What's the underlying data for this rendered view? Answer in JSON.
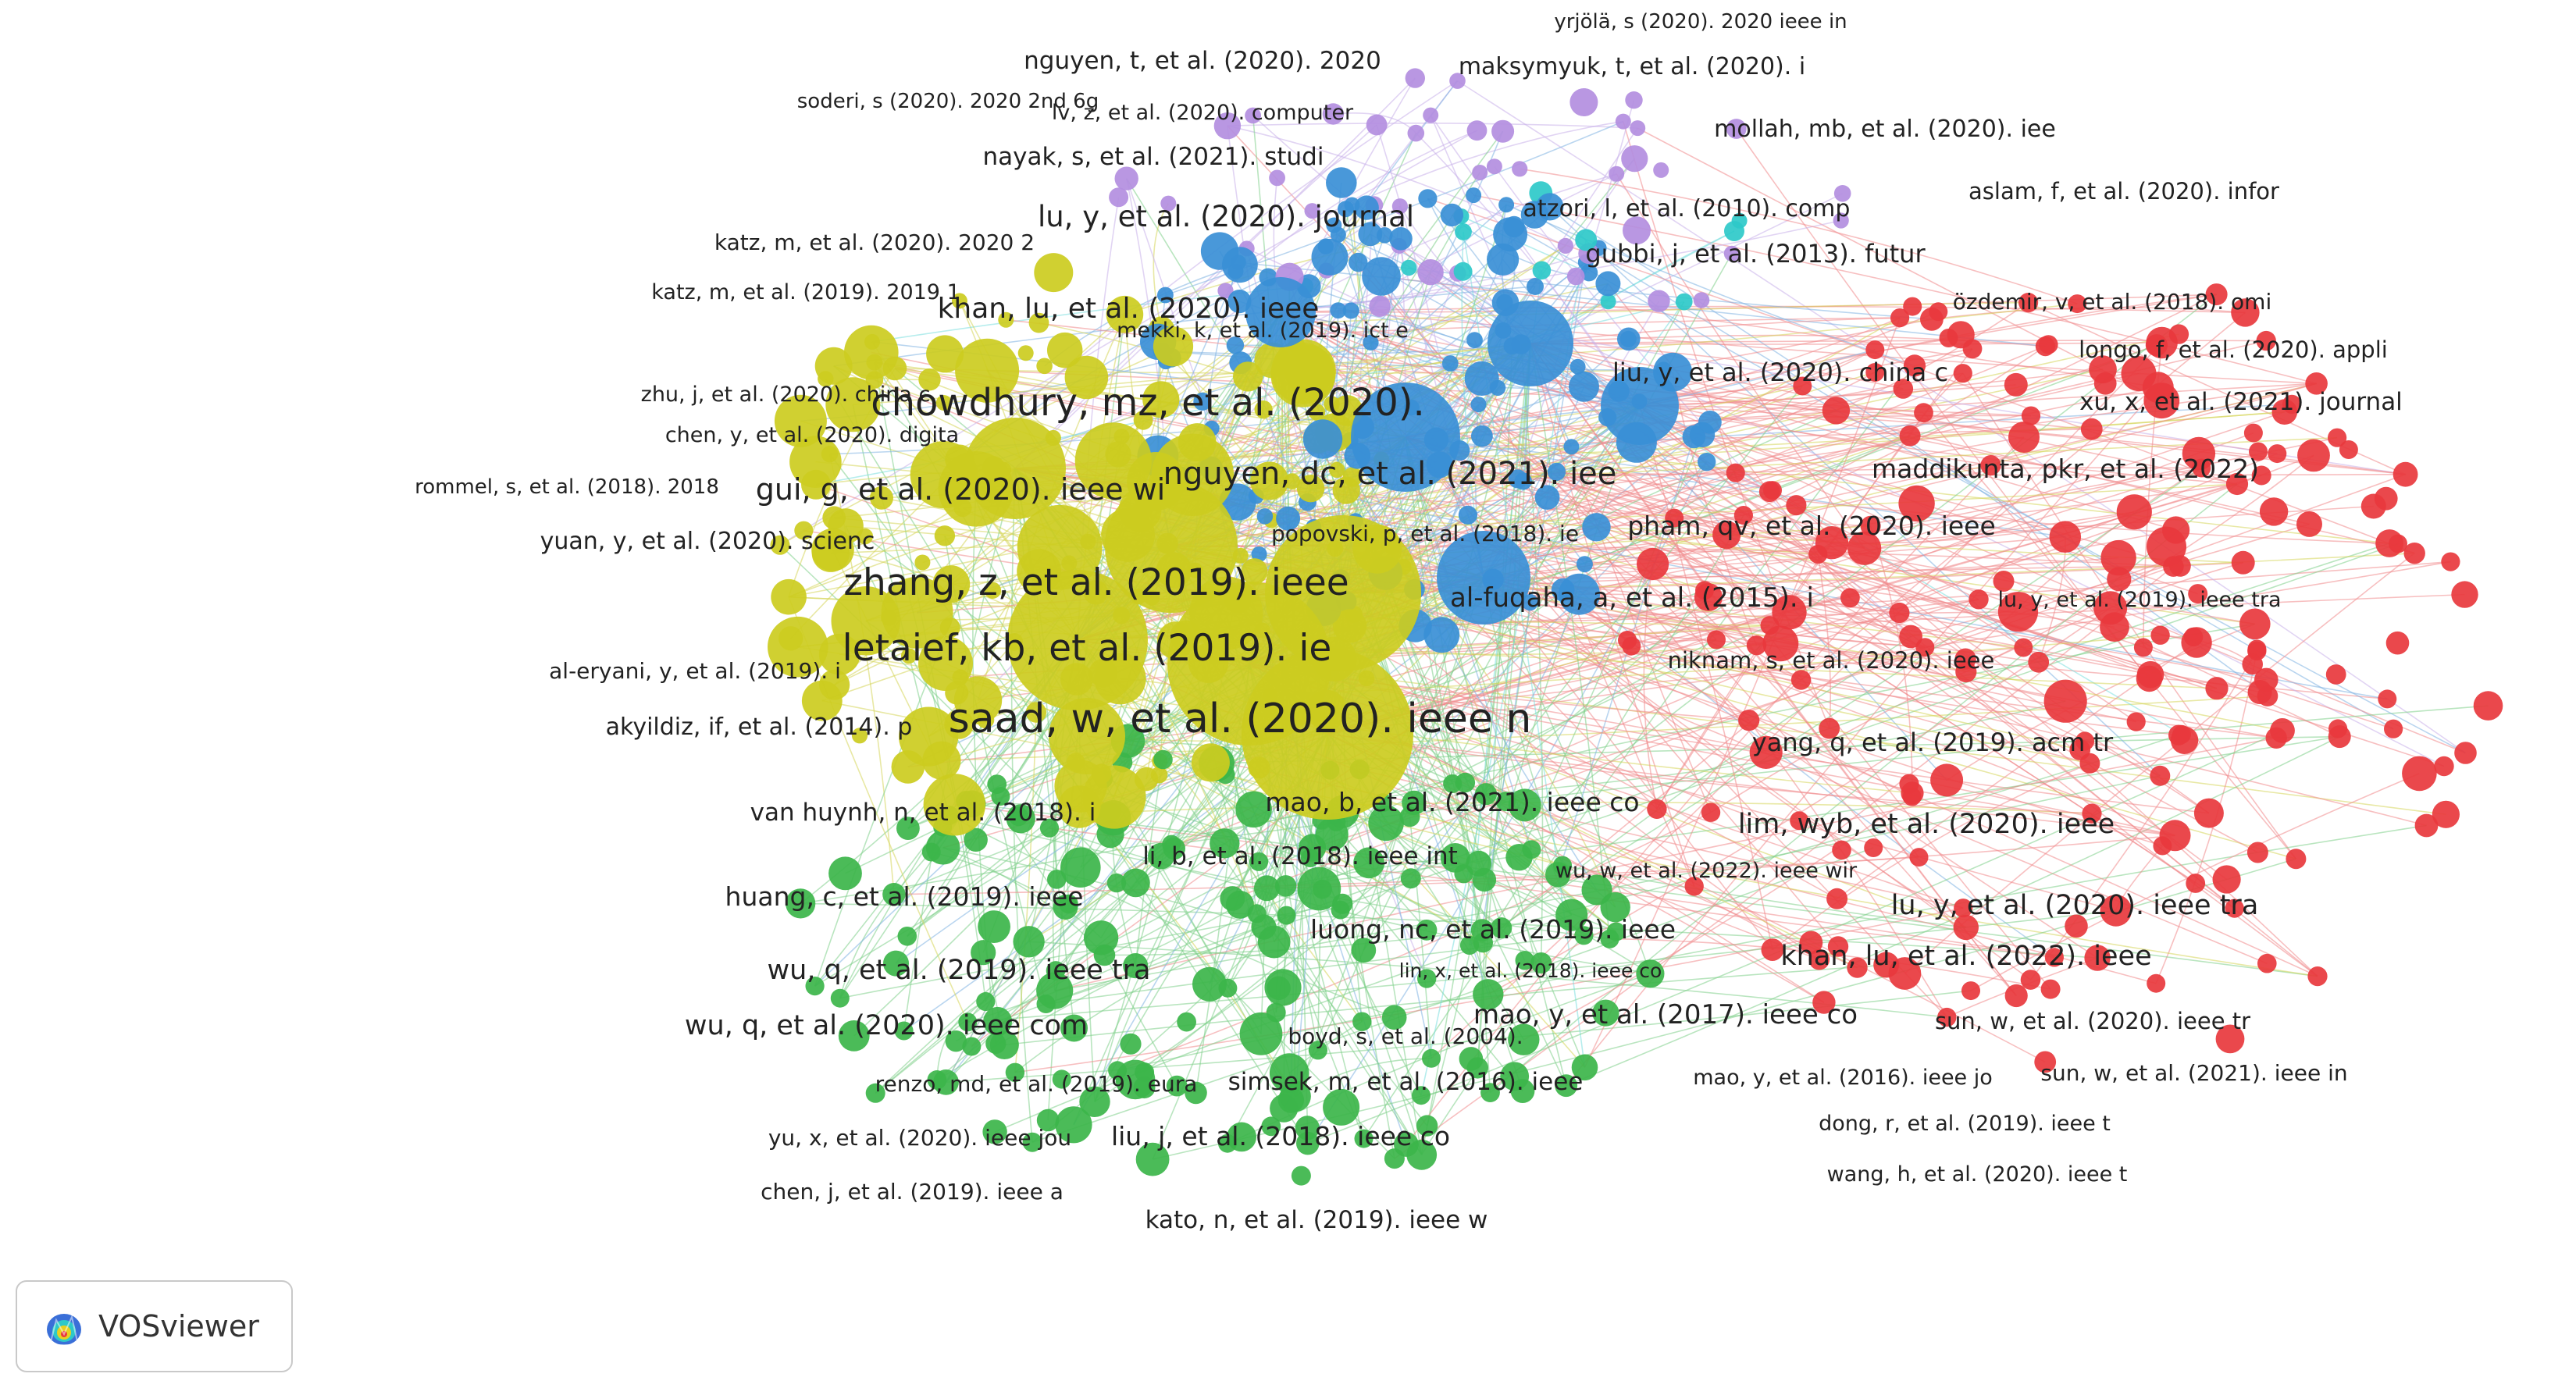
{
  "app": {
    "name": "VOSviewer",
    "logo_icon": "vosviewer-logo-icon"
  },
  "clusters": {
    "red": "#e8383d",
    "green": "#3cb54a",
    "blue": "#3a8fd6",
    "yellow": "#cccc20",
    "purple": "#b38ee0",
    "cyan": "#2ec9c9"
  },
  "labels": [
    {
      "text": "yrjölä, s (2020). 2020 ieee in",
      "cluster": "purple"
    },
    {
      "text": "nguyen, t, et al. (2020). 2020",
      "cluster": "yellow"
    },
    {
      "text": "maksymyuk, t, et al. (2020). i",
      "cluster": "purple"
    },
    {
      "text": "soderi, s (2020). 2020 2nd 6g",
      "cluster": "purple"
    },
    {
      "text": "lv, z, et al. (2020). computer",
      "cluster": "purple"
    },
    {
      "text": "mollah, mb, et al. (2020). iee",
      "cluster": "red"
    },
    {
      "text": "nayak, s, et al. (2021). studi",
      "cluster": "blue"
    },
    {
      "text": "aslam, f, et al. (2020). infor",
      "cluster": "red"
    },
    {
      "text": "lu, y, et al. (2020). journal",
      "cluster": "blue"
    },
    {
      "text": "atzori, l, et al. (2010). comp",
      "cluster": "yellow"
    },
    {
      "text": "katz, m, et al. (2020). 2020 2",
      "cluster": "purple"
    },
    {
      "text": "gubbi, j, et al. (2013). futur",
      "cluster": "red"
    },
    {
      "text": "katz, m, et al. (2019). 2019 1",
      "cluster": "yellow"
    },
    {
      "text": "özdemir, v, et al. (2018). omi",
      "cluster": "red"
    },
    {
      "text": "khan, lu, et al. (2020). ieee",
      "cluster": "blue"
    },
    {
      "text": "mekki, k, et al. (2019). ict e",
      "cluster": "blue"
    },
    {
      "text": "longo, f, et al. (2020). appli",
      "cluster": "red"
    },
    {
      "text": "liu, y, et al. (2020). china c",
      "cluster": "red"
    },
    {
      "text": "zhu, j, et al. (2020). china c",
      "cluster": "yellow"
    },
    {
      "text": "chowdhury, mz, et al. (2020).",
      "cluster": "yellow"
    },
    {
      "text": "xu, x, et al. (2021). journal",
      "cluster": "red"
    },
    {
      "text": "chen, y, et al. (2020). digita",
      "cluster": "yellow"
    },
    {
      "text": "maddikunta, pkr, et al. (2022)",
      "cluster": "red"
    },
    {
      "text": "rommel, s, et al. (2018). 2018",
      "cluster": "yellow"
    },
    {
      "text": "gui, g, et al. (2020). ieee wi",
      "cluster": "yellow"
    },
    {
      "text": "nguyen, dc, et al. (2021). iee",
      "cluster": "blue"
    },
    {
      "text": "popovski, p, et al. (2018). ie",
      "cluster": "purple"
    },
    {
      "text": "pham, qv, et al. (2020). ieee",
      "cluster": "red"
    },
    {
      "text": "yuan, y, et al. (2020). scienc",
      "cluster": "yellow"
    },
    {
      "text": "zhang, z, et al. (2019). ieee",
      "cluster": "yellow"
    },
    {
      "text": "al-fuqaha, a, et al. (2015). i",
      "cluster": "red"
    },
    {
      "text": "lu, y, et al. (2019). ieee tra",
      "cluster": "red"
    },
    {
      "text": "letaief, kb, et al. (2019). ie",
      "cluster": "yellow"
    },
    {
      "text": "al-eryani, y, et al. (2019). i",
      "cluster": "yellow"
    },
    {
      "text": "niknam, s, et al. (2020). ieee",
      "cluster": "red"
    },
    {
      "text": "saad, w, et al. (2020). ieee n",
      "cluster": "yellow"
    },
    {
      "text": "akyildiz, if, et al. (2014). p",
      "cluster": "yellow"
    },
    {
      "text": "yang, q, et al. (2019). acm tr",
      "cluster": "red"
    },
    {
      "text": "mao, b, et al. (2021). ieee co",
      "cluster": "blue"
    },
    {
      "text": "van huynh, n, et al. (2018). i",
      "cluster": "green"
    },
    {
      "text": "lim, wyb, et al. (2020). ieee",
      "cluster": "red"
    },
    {
      "text": "li, b, et al. (2018). ieee int",
      "cluster": "green"
    },
    {
      "text": "wu, w, et al. (2022). ieee wir",
      "cluster": "red"
    },
    {
      "text": "huang, c, et al. (2019). ieee",
      "cluster": "green"
    },
    {
      "text": "lu, y, et al. (2020). ieee tra",
      "cluster": "red"
    },
    {
      "text": "luong, nc, et al. (2019). ieee",
      "cluster": "green"
    },
    {
      "text": "khan, lu, et al. (2022). ieee",
      "cluster": "red"
    },
    {
      "text": "wu, q, et al. (2019). ieee tra",
      "cluster": "green"
    },
    {
      "text": "lin, x, et al. (2018). ieee co",
      "cluster": "green"
    },
    {
      "text": "mao, y, et al. (2017). ieee co",
      "cluster": "red"
    },
    {
      "text": "wu, q, et al. (2020). ieee com",
      "cluster": "green"
    },
    {
      "text": "sun, w, et al. (2020). ieee tr",
      "cluster": "red"
    },
    {
      "text": "boyd, s, et al. (2004).",
      "cluster": "yellow"
    },
    {
      "text": "renzo, md, et al. (2019). eura",
      "cluster": "green"
    },
    {
      "text": "simsek, m, et al. (2016). ieee",
      "cluster": "green"
    },
    {
      "text": "mao, y, et al. (2016). ieee jo",
      "cluster": "red"
    },
    {
      "text": "sun, w, et al. (2021). ieee in",
      "cluster": "red"
    },
    {
      "text": "yu, x, et al. (2020). ieee jou",
      "cluster": "green"
    },
    {
      "text": "liu, j, et al. (2018). ieee co",
      "cluster": "green"
    },
    {
      "text": "dong, r, et al. (2019). ieee t",
      "cluster": "red"
    },
    {
      "text": "chen, j, et al. (2019). ieee a",
      "cluster": "green"
    },
    {
      "text": "wang, h, et al. (2020). ieee t",
      "cluster": "red"
    },
    {
      "text": "kato, n, et al. (2019). ieee w",
      "cluster": "green"
    }
  ]
}
